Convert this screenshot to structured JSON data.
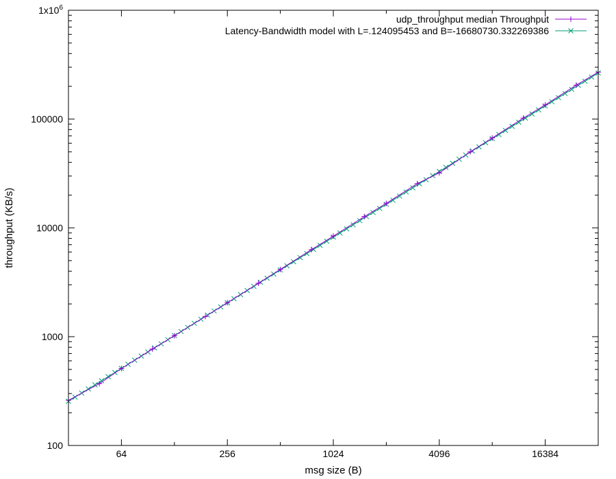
{
  "chart_data": {
    "type": "line",
    "xlabel": "msg size (B)",
    "ylabel": "throughput (KB/s)",
    "x_scale": "log2",
    "y_scale": "log10",
    "xlim": [
      32,
      32768
    ],
    "ylim": [
      100,
      1000000
    ],
    "x_ticks": [
      64,
      256,
      1024,
      4096,
      16384
    ],
    "x_tick_labels": [
      "64",
      "256",
      "1024",
      "4096",
      "16384"
    ],
    "y_ticks": [
      100,
      1000,
      10000,
      100000,
      1000000
    ],
    "y_tick_labels": [
      "100",
      "1000",
      "10000",
      "100000",
      "1x10"
    ],
    "y_top_label_exponent": "6",
    "grid": false,
    "legend_position": "top-right",
    "series": [
      {
        "name": "udp_throughput median Throughput",
        "color": "#9400d3",
        "marker": "plus",
        "x": [
          32,
          48,
          64,
          96,
          128,
          192,
          256,
          384,
          512,
          768,
          1024,
          1536,
          2048,
          3072,
          4096,
          6144,
          8192,
          12288,
          16384,
          24576,
          32768
        ],
        "y": [
          260,
          370,
          510,
          770,
          1020,
          1530,
          2050,
          3100,
          4150,
          6300,
          8400,
          12700,
          16800,
          25500,
          32000,
          50000,
          67000,
          102000,
          135000,
          205000,
          270000
        ]
      },
      {
        "name": "Latency-Bandwidth model with L=.124095453 and B=-16680730.332269386",
        "color": "#009e73",
        "marker": "x",
        "x_range": [
          32,
          32768
        ],
        "y_range": [
          255,
          265000
        ]
      }
    ]
  }
}
